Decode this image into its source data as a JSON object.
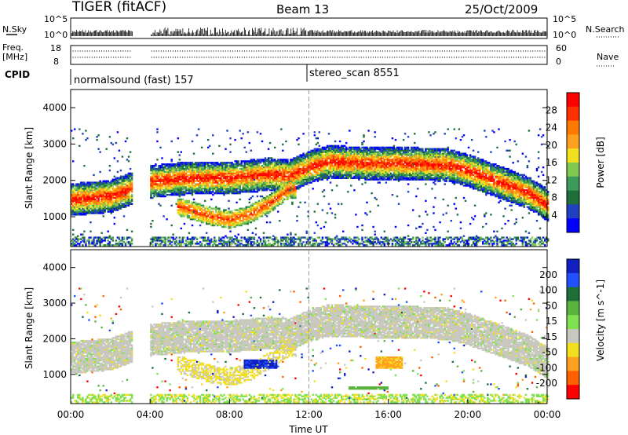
{
  "header": {
    "radar": "TIGER (fitACF)",
    "beam": "Beam 13",
    "date": "25/Oct/2009"
  },
  "noise_panel": {
    "left_label": "N.Sky",
    "left_ticks": [
      "10^5",
      "10^0"
    ],
    "right_label": "N.Search",
    "right_ticks": [
      "10^5",
      "10^0"
    ]
  },
  "freq_panel": {
    "left_label_1": "Freq.",
    "left_label_2": "[MHz]",
    "left_ticks": [
      "18",
      "8"
    ],
    "right_label": "Nave",
    "right_ticks": [
      "60",
      "0"
    ]
  },
  "cpid": {
    "label": "CPID",
    "segments": [
      {
        "name": "normalsound (fast) 157"
      },
      {
        "name": "stereo_scan 8551"
      }
    ]
  },
  "x_axis": {
    "label": "Time UT",
    "ticks": [
      "00:00",
      "04:00",
      "08:00",
      "12:00",
      "16:00",
      "20:00",
      "00:00"
    ]
  },
  "power_panel": {
    "ylabel": "Slant Range [km]",
    "yticks": [
      "1000",
      "2000",
      "3000",
      "4000"
    ],
    "colorbar_label": "Power [dB]",
    "colorbar_ticks": [
      "4",
      "8",
      "12",
      "16",
      "20",
      "24",
      "28"
    ],
    "colors": [
      "#0000ff",
      "#2040c0",
      "#1e6e3a",
      "#3c9a5a",
      "#7fc850",
      "#f2e020",
      "#ffa020",
      "#ff7a00",
      "#ff3000",
      "#ff0000"
    ]
  },
  "velocity_panel": {
    "ylabel": "Slant Range [km]",
    "yticks": [
      "1000",
      "2000",
      "3000",
      "4000"
    ],
    "colorbar_label": "Velocity [m s^-1]",
    "colorbar_ticks": [
      "200",
      "100",
      "50",
      "15",
      "-15",
      "-50",
      "-100",
      "-200"
    ],
    "colors": [
      "#1020c0",
      "#2050ff",
      "#1e6e3a",
      "#5ab43c",
      "#7fe050",
      "#c8c8c0",
      "#f2e020",
      "#ffa020",
      "#ff6000",
      "#ff0000"
    ]
  },
  "chart_data": {
    "type": "heatmap",
    "x_unit": "hours UT",
    "xlim": [
      0,
      24
    ],
    "ylim": [
      180,
      4500
    ],
    "y_unit": "km",
    "data_gap_hours": [
      3.1,
      4.0
    ],
    "cpid_change_hour": 12.0,
    "scatter_bands": [
      {
        "name": "main band",
        "x": [
          0,
          2,
          4,
          6,
          8,
          10,
          11,
          12,
          13,
          15,
          17,
          19,
          20,
          21,
          22,
          23,
          24
        ],
        "y_center": [
          1450,
          1550,
          1950,
          2050,
          2050,
          2150,
          2100,
          2350,
          2500,
          2450,
          2450,
          2400,
          2250,
          2050,
          1850,
          1650,
          1300
        ],
        "y_width": 450
      },
      {
        "name": "inner arc",
        "x": [
          5.5,
          7,
          8,
          9,
          10,
          11
        ],
        "y_center": [
          1250,
          1000,
          900,
          1050,
          1350,
          1750
        ],
        "y_width": 250
      }
    ],
    "power_db_range": [
      0,
      30
    ],
    "velocity_range": [
      -200,
      200
    ],
    "velocity_features": [
      {
        "name": "blue patch",
        "x": [
          8.7,
          10.4
        ],
        "y": [
          1150,
          1380
        ],
        "velocity": 200
      },
      {
        "name": "orange patch",
        "x": [
          15.3,
          16.7
        ],
        "y": [
          1150,
          1500
        ],
        "velocity": -70
      },
      {
        "name": "green streak",
        "x": [
          14.0,
          16.0
        ],
        "y": [
          550,
          650
        ],
        "velocity": 30
      }
    ]
  }
}
